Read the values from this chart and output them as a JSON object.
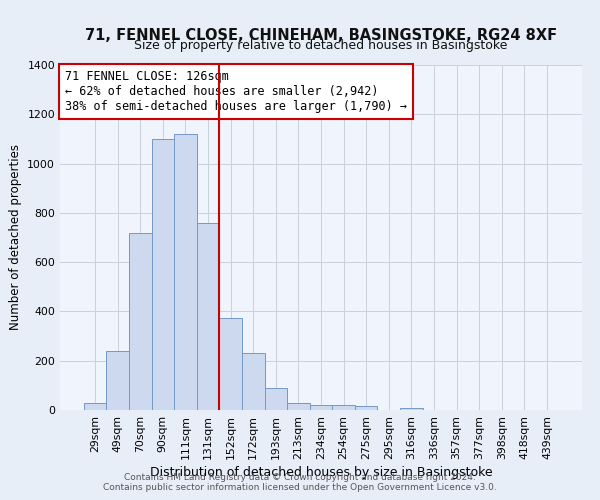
{
  "title": "71, FENNEL CLOSE, CHINEHAM, BASINGSTOKE, RG24 8XF",
  "subtitle": "Size of property relative to detached houses in Basingstoke",
  "xlabel": "Distribution of detached houses by size in Basingstoke",
  "ylabel": "Number of detached properties",
  "bar_labels": [
    "29sqm",
    "49sqm",
    "70sqm",
    "90sqm",
    "111sqm",
    "131sqm",
    "152sqm",
    "172sqm",
    "193sqm",
    "213sqm",
    "234sqm",
    "254sqm",
    "275sqm",
    "295sqm",
    "316sqm",
    "336sqm",
    "357sqm",
    "377sqm",
    "398sqm",
    "418sqm",
    "439sqm"
  ],
  "bar_values": [
    30,
    240,
    720,
    1100,
    1120,
    760,
    375,
    230,
    90,
    30,
    20,
    20,
    15,
    0,
    10,
    0,
    0,
    0,
    0,
    0,
    0
  ],
  "bar_color": "#ccd9ee",
  "bar_edge_color": "#7399c6",
  "vline_color": "#cc0000",
  "annotation_title": "71 FENNEL CLOSE: 126sqm",
  "annotation_line1": "← 62% of detached houses are smaller (2,942)",
  "annotation_line2": "38% of semi-detached houses are larger (1,790) →",
  "annotation_box_color": "#ffffff",
  "annotation_box_edge_color": "#cc0000",
  "ylim": [
    0,
    1400
  ],
  "yticks": [
    0,
    200,
    400,
    600,
    800,
    1000,
    1200,
    1400
  ],
  "footnote1": "Contains HM Land Registry data © Crown copyright and database right 2024.",
  "footnote2": "Contains public sector information licensed under the Open Government Licence v3.0.",
  "bg_color": "#e8eef8",
  "plot_bg_color": "#f0f4fc",
  "grid_color": "#c8d0dc",
  "title_fontsize": 10.5,
  "subtitle_fontsize": 9.0,
  "ylabel_fontsize": 8.5,
  "xlabel_fontsize": 9.0,
  "tick_fontsize": 7.8,
  "annotation_fontsize": 8.5,
  "footnote_fontsize": 6.5
}
